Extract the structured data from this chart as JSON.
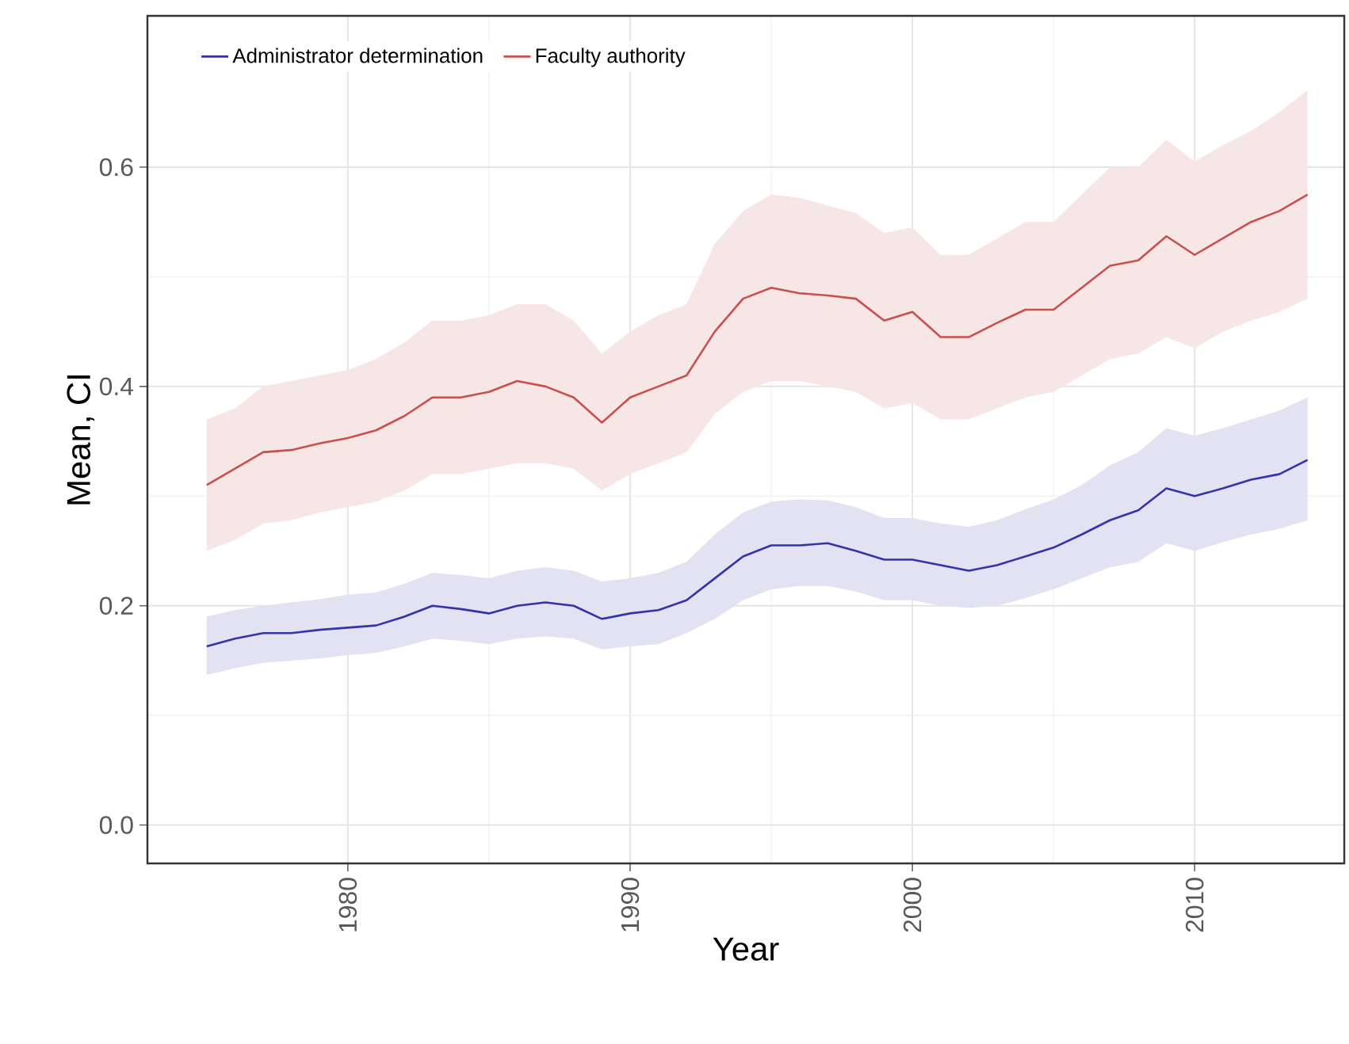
{
  "chart_data": {
    "type": "line",
    "xlabel": "Year",
    "ylabel": "Mean, CI",
    "x": [
      1975,
      1976,
      1977,
      1978,
      1979,
      1980,
      1981,
      1982,
      1983,
      1984,
      1985,
      1986,
      1987,
      1988,
      1989,
      1990,
      1991,
      1992,
      1993,
      1994,
      1995,
      1996,
      1997,
      1998,
      1999,
      2000,
      2001,
      2002,
      2003,
      2004,
      2005,
      2006,
      2007,
      2008,
      2009,
      2010,
      2011,
      2012,
      2013,
      2014
    ],
    "xlim": [
      1972.9,
      2015.3
    ],
    "ylim": [
      -0.035,
      0.738
    ],
    "xticks": [
      1980,
      1990,
      2000,
      2010
    ],
    "yticks": [
      {
        "value": 0,
        "label": "0.0"
      },
      {
        "value": 0.2,
        "label": "0.2"
      },
      {
        "value": 0.4,
        "label": "0.4"
      },
      {
        "value": 0.6,
        "label": "0.6"
      }
    ],
    "grid": true,
    "legend": "top left",
    "line_style": "solid",
    "marker": "none",
    "series": [
      {
        "name": "Administrator determination",
        "color": "#3333aa",
        "values": [
          0.163,
          0.17,
          0.175,
          0.175,
          0.178,
          0.18,
          0.182,
          0.19,
          0.2,
          0.197,
          0.193,
          0.2,
          0.203,
          0.2,
          0.188,
          0.193,
          0.196,
          0.205,
          0.225,
          0.245,
          0.255,
          0.255,
          0.257,
          0.25,
          0.242,
          0.242,
          0.237,
          0.232,
          0.237,
          0.245,
          0.253,
          0.265,
          0.278,
          0.287,
          0.307,
          0.3,
          0.307,
          0.315,
          0.32,
          0.333
        ],
        "upper": [
          0.19,
          0.196,
          0.2,
          0.203,
          0.206,
          0.21,
          0.212,
          0.22,
          0.23,
          0.228,
          0.225,
          0.232,
          0.235,
          0.232,
          0.222,
          0.225,
          0.23,
          0.24,
          0.265,
          0.285,
          0.295,
          0.297,
          0.296,
          0.29,
          0.28,
          0.28,
          0.275,
          0.272,
          0.278,
          0.288,
          0.297,
          0.31,
          0.328,
          0.34,
          0.362,
          0.355,
          0.362,
          0.37,
          0.378,
          0.39
        ],
        "lower": [
          0.137,
          0.143,
          0.148,
          0.15,
          0.152,
          0.155,
          0.157,
          0.163,
          0.17,
          0.168,
          0.165,
          0.17,
          0.172,
          0.17,
          0.16,
          0.163,
          0.165,
          0.175,
          0.188,
          0.205,
          0.215,
          0.218,
          0.218,
          0.213,
          0.205,
          0.205,
          0.2,
          0.198,
          0.2,
          0.207,
          0.215,
          0.225,
          0.235,
          0.24,
          0.257,
          0.25,
          0.258,
          0.265,
          0.27,
          0.278
        ]
      },
      {
        "name": "Faculty authority",
        "color": "#c8504d",
        "values": [
          0.31,
          0.325,
          0.34,
          0.342,
          0.348,
          0.353,
          0.36,
          0.373,
          0.39,
          0.39,
          0.395,
          0.405,
          0.4,
          0.39,
          0.367,
          0.39,
          0.4,
          0.41,
          0.45,
          0.48,
          0.49,
          0.485,
          0.483,
          0.48,
          0.46,
          0.468,
          0.445,
          0.445,
          0.458,
          0.47,
          0.47,
          0.49,
          0.51,
          0.515,
          0.537,
          0.52,
          0.535,
          0.55,
          0.56,
          0.575
        ],
        "upper": [
          0.37,
          0.38,
          0.4,
          0.405,
          0.41,
          0.415,
          0.425,
          0.44,
          0.46,
          0.46,
          0.465,
          0.475,
          0.475,
          0.46,
          0.43,
          0.45,
          0.465,
          0.475,
          0.53,
          0.56,
          0.575,
          0.572,
          0.565,
          0.558,
          0.54,
          0.545,
          0.52,
          0.52,
          0.535,
          0.55,
          0.55,
          0.575,
          0.6,
          0.6,
          0.625,
          0.605,
          0.62,
          0.633,
          0.65,
          0.67
        ],
        "lower": [
          0.25,
          0.26,
          0.275,
          0.278,
          0.285,
          0.29,
          0.295,
          0.305,
          0.32,
          0.32,
          0.325,
          0.33,
          0.33,
          0.325,
          0.305,
          0.32,
          0.33,
          0.34,
          0.375,
          0.395,
          0.405,
          0.405,
          0.4,
          0.395,
          0.38,
          0.385,
          0.37,
          0.37,
          0.38,
          0.39,
          0.395,
          0.41,
          0.425,
          0.43,
          0.445,
          0.435,
          0.45,
          0.46,
          0.468,
          0.48
        ]
      }
    ]
  }
}
